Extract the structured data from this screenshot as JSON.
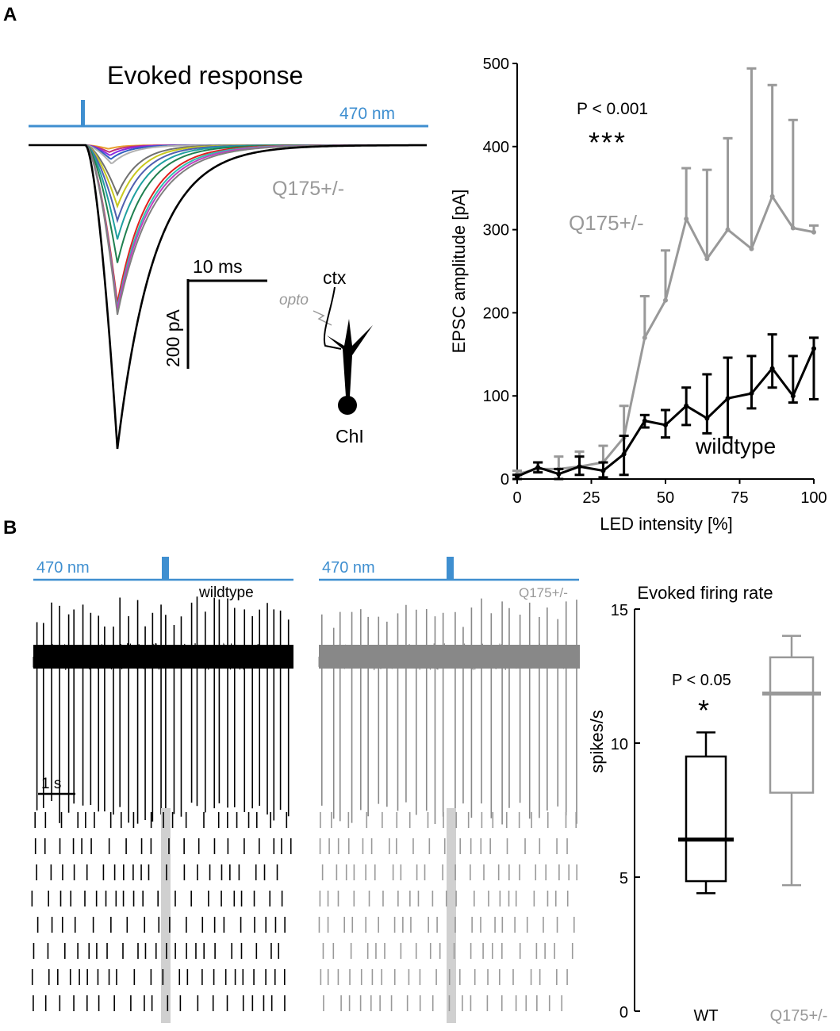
{
  "panel_labels": {
    "a": "A",
    "b": "B"
  },
  "colors": {
    "blue": "#3f8fd0",
    "black": "#000000",
    "gray": "#999999",
    "light_gray": "#d0d0d0",
    "trace_colors": [
      "#e8a030",
      "#c0307a",
      "#8a2be2",
      "#3060c0",
      "#b0b0b0",
      "#707070",
      "#c8c820",
      "#5060b0",
      "#20a0a0",
      "#208050",
      "#e02020",
      "#30c0b0",
      "#c040c0",
      "#808080",
      "#000000"
    ]
  },
  "evoked_trace": {
    "title": "Evoked response",
    "stimulus_label": "470 nm",
    "genotype_label": "Q175+/-",
    "scale_time_label": "10 ms",
    "scale_amp_label": "200 pA",
    "schematic": {
      "ctx_label": "ctx",
      "opto_label": "opto",
      "chi_label": "ChI"
    },
    "peak_amplitudes_pA": [
      8,
      15,
      22,
      30,
      40,
      105,
      130,
      160,
      200,
      250,
      335,
      345,
      350,
      360,
      645
    ]
  },
  "chart_data": [
    {
      "type": "line",
      "title": "",
      "xlabel": "LED intensity [%]",
      "ylabel": "EPSC amplitude [pA]",
      "xlim": [
        0,
        100
      ],
      "ylim": [
        0,
        500
      ],
      "xticks": [
        0,
        25,
        50,
        75,
        100
      ],
      "yticks": [
        0,
        100,
        200,
        300,
        400,
        500
      ],
      "significance": {
        "text": "P < 0.001",
        "stars": "***"
      },
      "x": [
        0,
        7,
        14,
        21,
        29,
        36,
        43,
        50,
        57,
        64,
        71,
        79,
        86,
        93,
        100
      ],
      "series": [
        {
          "name": "Q175+/-",
          "color": "#999999",
          "values": [
            6,
            12,
            12,
            15,
            20,
            50,
            170,
            215,
            313,
            265,
            300,
            277,
            340,
            302,
            297
          ],
          "err_upper": [
            10,
            20,
            27,
            33,
            40,
            88,
            220,
            275,
            374,
            372,
            410,
            494,
            474,
            432,
            305
          ]
        },
        {
          "name": "wildtype",
          "color": "#000000",
          "values": [
            3,
            14,
            6,
            15,
            10,
            30,
            70,
            65,
            88,
            73,
            97,
            103,
            133,
            100,
            157
          ],
          "err_upper": [
            5,
            20,
            12,
            27,
            20,
            52,
            77,
            83,
            110,
            126,
            146,
            148,
            174,
            148,
            170
          ],
          "err_lower": [
            0,
            8,
            0,
            5,
            2,
            5,
            62,
            50,
            65,
            55,
            50,
            85,
            110,
            92,
            96
          ]
        }
      ]
    },
    {
      "type": "box",
      "title": "Evoked firing rate",
      "ylabel": "spikes/s",
      "ylim": [
        0,
        15
      ],
      "yticks": [
        0,
        5,
        10,
        15
      ],
      "significance": {
        "text": "P < 0.05",
        "stars": "*"
      },
      "categories": [
        "WT",
        "Q175+/-"
      ],
      "series": [
        {
          "name": "WT",
          "color": "#000000",
          "min": 4.4,
          "q1": 4.85,
          "median": 6.4,
          "q3": 9.5,
          "max": 10.4
        },
        {
          "name": "Q175+/-",
          "color": "#999999",
          "min": 4.7,
          "q1": 8.15,
          "median": 11.85,
          "q3": 13.2,
          "max": 14.0
        }
      ]
    }
  ],
  "spike_traces": {
    "stimulus_label": "470 nm",
    "wildtype": {
      "label": "wildtype",
      "spike_count": 34,
      "raster_rows": 8
    },
    "q175": {
      "label": "Q175+/-",
      "spike_count": 28,
      "raster_rows": 8
    },
    "scale_label": "1 s"
  }
}
